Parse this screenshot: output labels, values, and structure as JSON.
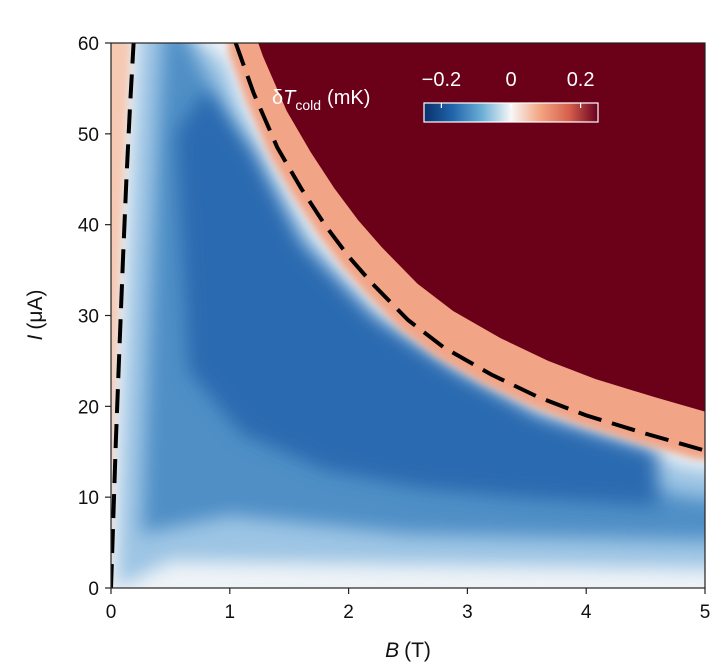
{
  "chart_data": {
    "type": "heatmap",
    "title": "",
    "xlabel": "B (T)",
    "xlabel_var": "B",
    "xlabel_unit": "(T)",
    "ylabel": "I (μA)",
    "ylabel_var": "I",
    "ylabel_unit": "(μA)",
    "xlim": [
      0,
      5
    ],
    "ylim": [
      0,
      60
    ],
    "xticks": [
      0,
      1,
      2,
      3,
      4,
      5
    ],
    "yticks": [
      0,
      10,
      20,
      30,
      40,
      50,
      60
    ],
    "xtick_labels": [
      "0",
      "1",
      "2",
      "3",
      "4",
      "5"
    ],
    "ytick_labels": [
      "0",
      "10",
      "20",
      "30",
      "40",
      "50",
      "60"
    ],
    "colorbar": {
      "label_prefix": "δ",
      "label_var": "T",
      "label_sub": "cold",
      "label_unit": "(mK)",
      "range": [
        -0.25,
        0.25
      ],
      "ticks": [
        -0.2,
        0,
        0.2
      ],
      "tick_labels": [
        "−0.2",
        "0",
        "0.2"
      ],
      "placement": "top-right, inside plot",
      "colors": [
        "#08306b",
        "#2166ac",
        "#6baed6",
        "#f7f7f7",
        "#f4a582",
        "#d6604d",
        "#67001f"
      ]
    },
    "series": [
      {
        "name": "left dashed boundary",
        "style": "dashed",
        "color": "#000000",
        "x": [
          0.0,
          0.02,
          0.04,
          0.07,
          0.1,
          0.13,
          0.16,
          0.19
        ],
        "y": [
          0,
          8,
          16,
          26,
          36,
          45,
          53,
          60
        ]
      },
      {
        "name": "right dashed boundary",
        "style": "dashed",
        "color": "#000000",
        "x": [
          1.05,
          1.2,
          1.4,
          1.6,
          1.8,
          2.0,
          2.2,
          2.5,
          2.8,
          3.2,
          3.6,
          4.0,
          4.5,
          4.98
        ],
        "y": [
          60,
          54.5,
          48.5,
          44,
          40,
          36.5,
          33.5,
          29.5,
          26.5,
          23.5,
          21,
          19,
          17,
          15.2
        ]
      }
    ],
    "heatmap_regions": [
      {
        "name": "hot saturated region",
        "value": 0.25,
        "location": "upper right, above the right boundary"
      },
      {
        "name": "cooling region",
        "value": -0.15,
        "location": "between the two dashed boundaries"
      },
      {
        "name": "neutral region",
        "value": 0.0,
        "location": "near I = 0 and near B = 0"
      }
    ]
  }
}
